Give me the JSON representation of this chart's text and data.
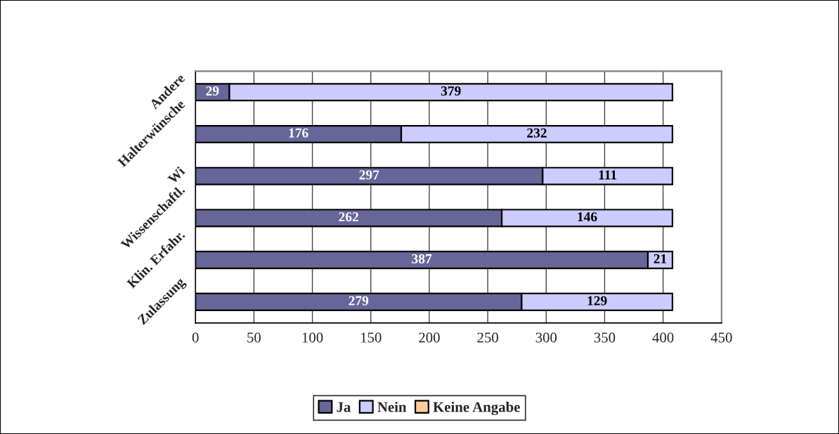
{
  "chart_data": {
    "type": "bar",
    "orientation": "horizontal",
    "stacked": true,
    "categories": [
      "Andere",
      "Halterwünsche",
      "Wi",
      "Wissenschaftl.",
      "Klin. Erfahr.",
      "Zulassung"
    ],
    "series": [
      {
        "name": "Ja",
        "color": "#666699",
        "values": [
          29,
          176,
          297,
          262,
          387,
          279
        ],
        "value_labels": [
          "29",
          "176",
          "297",
          "262",
          "387",
          "279"
        ]
      },
      {
        "name": "Nein",
        "color": "#ccccff",
        "values": [
          379,
          232,
          111,
          146,
          21,
          129
        ],
        "value_labels": [
          "379",
          "232",
          "111",
          "146",
          "21",
          "129"
        ]
      },
      {
        "name": "Keine Angabe",
        "color": "#ffcc99",
        "values": [
          0,
          0,
          0,
          0,
          0,
          0
        ]
      }
    ],
    "xlim": [
      0,
      450
    ],
    "xticks": [
      0,
      50,
      100,
      150,
      200,
      250,
      300,
      350,
      400,
      450
    ],
    "grid": "x",
    "legend": "bottom"
  }
}
